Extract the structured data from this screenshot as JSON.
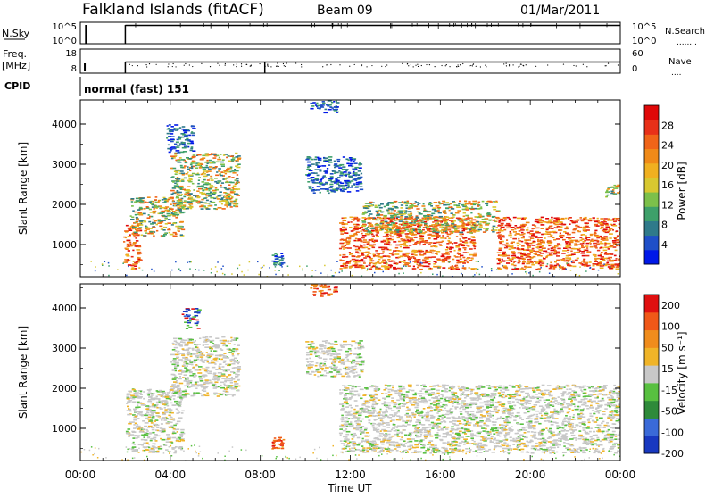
{
  "header": {
    "station": "Falkland Islands (fitACF)",
    "beam": "Beam 09",
    "date": "01/Mar/2011"
  },
  "status_panels": {
    "nsky": {
      "label": "N.Sky",
      "top_tick": "10^5",
      "bottom_tick": "10^0"
    },
    "nsearch": {
      "label": "N.Search",
      "top_tick": "10^5",
      "bottom_tick": "10^0",
      "legend": "........"
    },
    "freq": {
      "label": "Freq.",
      "unit": "[MHz]",
      "top_tick": "18",
      "bottom_tick": "8"
    },
    "nave": {
      "label": "Nave",
      "top_tick": "60",
      "bottom_tick": "0",
      "legend": "...."
    },
    "cpid": {
      "label": "CPID",
      "mode_text": "normal (fast) 151"
    }
  },
  "time_axis": {
    "label": "Time UT",
    "ticks": [
      "00:00",
      "04:00",
      "08:00",
      "12:00",
      "16:00",
      "20:00",
      "00:00"
    ]
  },
  "chart_data": [
    {
      "type": "heatmap",
      "name": "power",
      "xlabel": "Time UT",
      "ylabel": "Slant Range [km]",
      "xlim": [
        0,
        24
      ],
      "ylim": [
        200,
        4600
      ],
      "yticks": [
        "1000",
        "2000",
        "3000",
        "4000"
      ],
      "colorbar": {
        "label": "Power [dB]",
        "ticks": [
          "4",
          "8",
          "12",
          "16",
          "20",
          "24",
          "28"
        ],
        "colors": [
          "#0018e8",
          "#1f4fc8",
          "#2f7a8a",
          "#3ea06a",
          "#7cc04a",
          "#d8c830",
          "#f0b020",
          "#f08a18",
          "#f06418",
          "#e83018",
          "#e00808"
        ]
      },
      "regions": [
        {
          "t0": 1.9,
          "t1": 2.6,
          "r0": 400,
          "r1": 1500,
          "level": "high"
        },
        {
          "t0": 2.2,
          "t1": 4.5,
          "r0": 1200,
          "r1": 2200,
          "level": "mid"
        },
        {
          "t0": 4.0,
          "t1": 7.0,
          "r0": 1900,
          "r1": 3300,
          "level": "mid"
        },
        {
          "t0": 3.8,
          "t1": 5.0,
          "r0": 3300,
          "r1": 4000,
          "level": "low"
        },
        {
          "t0": 8.5,
          "t1": 9.0,
          "r0": 500,
          "r1": 800,
          "level": "low"
        },
        {
          "t0": 10.2,
          "t1": 11.4,
          "r0": 4300,
          "r1": 4600,
          "level": "low"
        },
        {
          "t0": 10.0,
          "t1": 12.5,
          "r0": 2300,
          "r1": 3200,
          "level": "low"
        },
        {
          "t0": 11.5,
          "t1": 17.5,
          "r0": 400,
          "r1": 1700,
          "level": "high"
        },
        {
          "t0": 12.5,
          "t1": 18.5,
          "r0": 1300,
          "r1": 2100,
          "level": "mid"
        },
        {
          "t0": 18.5,
          "t1": 24.0,
          "r0": 400,
          "r1": 1700,
          "level": "high"
        },
        {
          "t0": 23.3,
          "t1": 24.0,
          "r0": 2200,
          "r1": 2500,
          "level": "mid"
        }
      ]
    },
    {
      "type": "heatmap",
      "name": "velocity",
      "xlabel": "Time UT",
      "ylabel": "Slant Range [km]",
      "xlim": [
        0,
        24
      ],
      "ylim": [
        200,
        4600
      ],
      "yticks": [
        "1000",
        "2000",
        "3000",
        "4000"
      ],
      "colorbar": {
        "label": "Velocity [m s⁻¹]",
        "ticks": [
          "200",
          "100",
          "50",
          "15",
          "-15",
          "-50",
          "-100",
          "-200"
        ],
        "colors": [
          "#1838c0",
          "#3a6ad8",
          "#2e8a3a",
          "#58c040",
          "#c8c8c8",
          "#f0b428",
          "#f08c1c",
          "#f05818",
          "#e01010"
        ]
      },
      "regions": [
        {
          "t0": 2.0,
          "t1": 4.5,
          "r0": 400,
          "r1": 2000,
          "level": "neutral"
        },
        {
          "t0": 4.0,
          "t1": 7.0,
          "r0": 1800,
          "r1": 3300,
          "level": "neutral"
        },
        {
          "t0": 4.5,
          "t1": 5.2,
          "r0": 3500,
          "r1": 4000,
          "level": "blue"
        },
        {
          "t0": 8.5,
          "t1": 9.0,
          "r0": 500,
          "r1": 800,
          "level": "red"
        },
        {
          "t0": 10.2,
          "t1": 11.3,
          "r0": 4300,
          "r1": 4600,
          "level": "red"
        },
        {
          "t0": 10.0,
          "t1": 12.5,
          "r0": 2300,
          "r1": 3200,
          "level": "neutral"
        },
        {
          "t0": 11.5,
          "t1": 24.0,
          "r0": 400,
          "r1": 2100,
          "level": "neutral"
        }
      ]
    }
  ]
}
